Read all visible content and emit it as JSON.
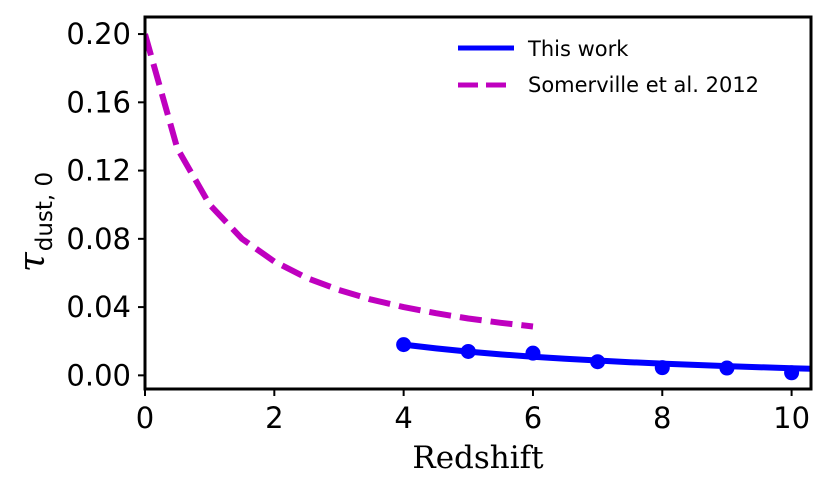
{
  "chart_data": {
    "type": "line",
    "xlabel": "Redshift",
    "ylabel": {
      "main": "τ",
      "sub": "dust, 0"
    },
    "xlim": [
      0,
      10.3
    ],
    "ylim": [
      -0.008,
      0.21
    ],
    "xticks": [
      0,
      2,
      4,
      6,
      8,
      10
    ],
    "xtick_labels": [
      "0",
      "2",
      "4",
      "6",
      "8",
      "10"
    ],
    "yticks": [
      0.0,
      0.04,
      0.08,
      0.12,
      0.16,
      0.2
    ],
    "ytick_labels": [
      "0.00",
      "0.04",
      "0.08",
      "0.12",
      "0.16",
      "0.20"
    ],
    "grid": false,
    "legend_position": "top-right",
    "series": [
      {
        "name": "This work",
        "style": "solid",
        "color": "#0000ff",
        "x": [
          4.0,
          4.5,
          5.0,
          5.5,
          6.0,
          6.5,
          7.0,
          7.5,
          8.0,
          8.5,
          9.0,
          9.5,
          10.0,
          10.3
        ],
        "y": [
          0.018,
          0.0158,
          0.0139,
          0.0123,
          0.0109,
          0.0097,
          0.0087,
          0.0077,
          0.0069,
          0.0061,
          0.0054,
          0.0048,
          0.0042,
          0.0039
        ]
      },
      {
        "name": "Somerville et al. 2012",
        "style": "dashed",
        "color": "#bf00bf",
        "x": [
          0,
          0.5,
          1.0,
          1.5,
          2.0,
          2.5,
          3.0,
          3.5,
          4.0,
          4.5,
          5.0,
          5.5,
          6.0
        ],
        "y": [
          0.2,
          0.133,
          0.1,
          0.08,
          0.0667,
          0.0571,
          0.05,
          0.0444,
          0.04,
          0.0364,
          0.0333,
          0.0308,
          0.0286
        ]
      },
      {
        "name": "",
        "style": "markers",
        "color": "#0000ff",
        "x": [
          4,
          5,
          6,
          7,
          8,
          9,
          10
        ],
        "y": [
          0.018,
          0.014,
          0.013,
          0.008,
          0.0045,
          0.0043,
          0.0015
        ]
      }
    ]
  }
}
